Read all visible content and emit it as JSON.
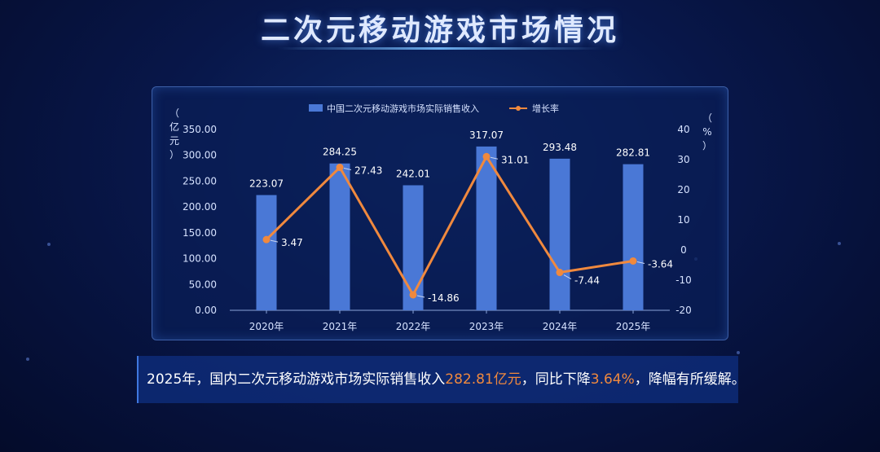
{
  "page": {
    "title": "二次元移动游戏市场情况",
    "summary": {
      "part1": "2025年，国内二次元移动游戏市场实际销售收入",
      "highlight1": "282.81亿元",
      "part2": "，同比下降",
      "highlight2": "3.64%",
      "part3": "，降幅有所缓解。"
    }
  },
  "colors": {
    "bar": "#4a78d6",
    "line": "#f0893e",
    "axis_text": "#d6e2ff",
    "background": "#08174a"
  },
  "chart_data": {
    "type": "bar+line",
    "categories": [
      "2020年",
      "2021年",
      "2022年",
      "2023年",
      "2024年",
      "2025年"
    ],
    "series": [
      {
        "name": "中国二次元移动游戏市场实际销售收入",
        "type": "bar",
        "axis": "left",
        "values": [
          223.07,
          284.25,
          242.01,
          317.07,
          293.48,
          282.81
        ],
        "labels": [
          "223.07",
          "284.25",
          "242.01",
          "317.07",
          "293.48",
          "282.81"
        ]
      },
      {
        "name": "增长率",
        "type": "line",
        "axis": "right",
        "values": [
          3.47,
          27.43,
          -14.86,
          31.01,
          -7.44,
          -3.64
        ],
        "labels": [
          "3.47",
          "27.43",
          "-14.86",
          "31.01",
          "-7.44",
          "-3.64"
        ]
      }
    ],
    "y_left": {
      "label": "（亿元）",
      "label_chars": [
        "（",
        "亿",
        "元",
        "）"
      ],
      "ylim": [
        0,
        350
      ],
      "ticks": [
        "0.00",
        "50.00",
        "100.00",
        "150.00",
        "200.00",
        "250.00",
        "300.00",
        "350.00"
      ]
    },
    "y_right": {
      "label": "（%）",
      "label_chars": [
        "（",
        "%",
        "）"
      ],
      "ylim": [
        -20,
        40
      ],
      "ticks": [
        "-20",
        "-10",
        "0",
        "10",
        "20",
        "30",
        "40"
      ]
    },
    "legend_position": "top-center",
    "grid": false
  }
}
